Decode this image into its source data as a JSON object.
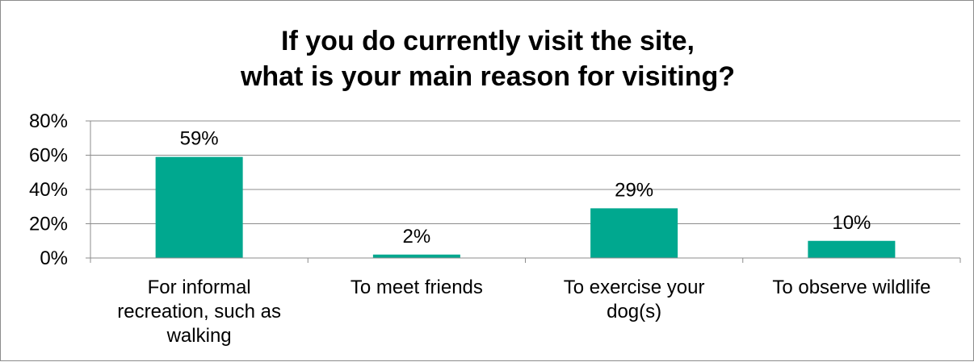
{
  "chart_data": {
    "type": "bar",
    "title": "If you do currently visit the site, what is your main reason for visiting?",
    "title_lines": [
      "If you do currently visit the site,",
      "what is your main reason for visiting?"
    ],
    "categories": [
      [
        "For informal",
        "recreation, such as",
        "walking"
      ],
      [
        "To meet friends"
      ],
      [
        "To exercise your",
        "dog(s)"
      ],
      [
        "To observe wildlife"
      ]
    ],
    "values": [
      59,
      2,
      29,
      10
    ],
    "value_labels": [
      "59%",
      "2%",
      "29%",
      "10%"
    ],
    "yticks": [
      "0%",
      "20%",
      "40%",
      "60%",
      "80%"
    ],
    "ylim": [
      0,
      80
    ],
    "grid": true,
    "legend": "none",
    "bar_color": "#00a88f",
    "xlabel": "",
    "ylabel": ""
  }
}
